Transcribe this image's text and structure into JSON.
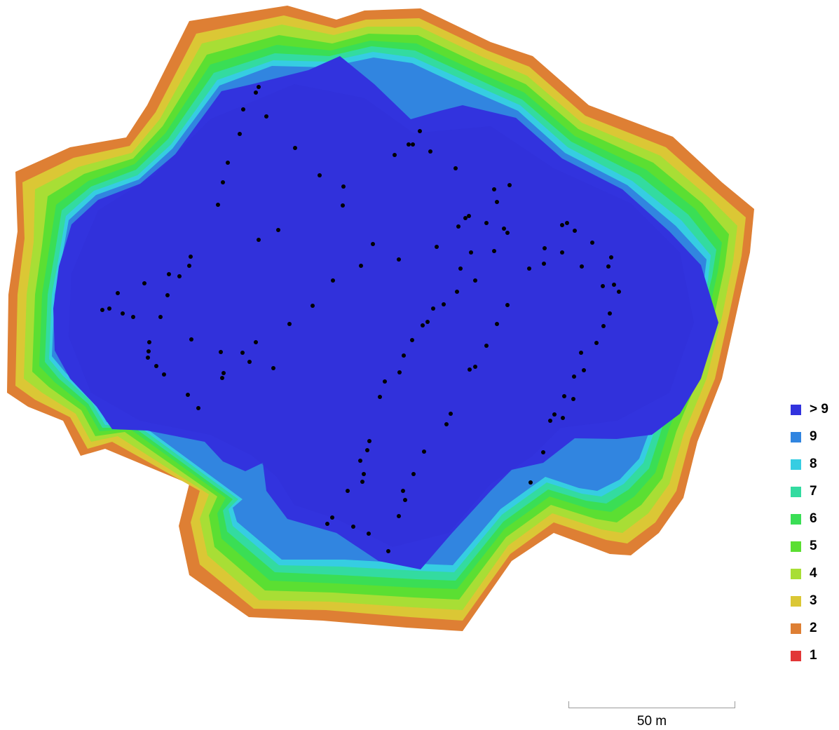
{
  "legend": {
    "items": [
      {
        "label": "> 9",
        "color": "#3233de"
      },
      {
        "label": "9",
        "color": "#3185e0"
      },
      {
        "label": "8",
        "color": "#36cde2"
      },
      {
        "label": "7",
        "color": "#33dba0"
      },
      {
        "label": "6",
        "color": "#3ade55"
      },
      {
        "label": "5",
        "color": "#5bdf32"
      },
      {
        "label": "4",
        "color": "#a8de35"
      },
      {
        "label": "3",
        "color": "#dbc735"
      },
      {
        "label": "2",
        "color": "#de7f34"
      },
      {
        "label": "1",
        "color": "#e23737"
      }
    ]
  },
  "scale": {
    "label": "50 m"
  }
}
